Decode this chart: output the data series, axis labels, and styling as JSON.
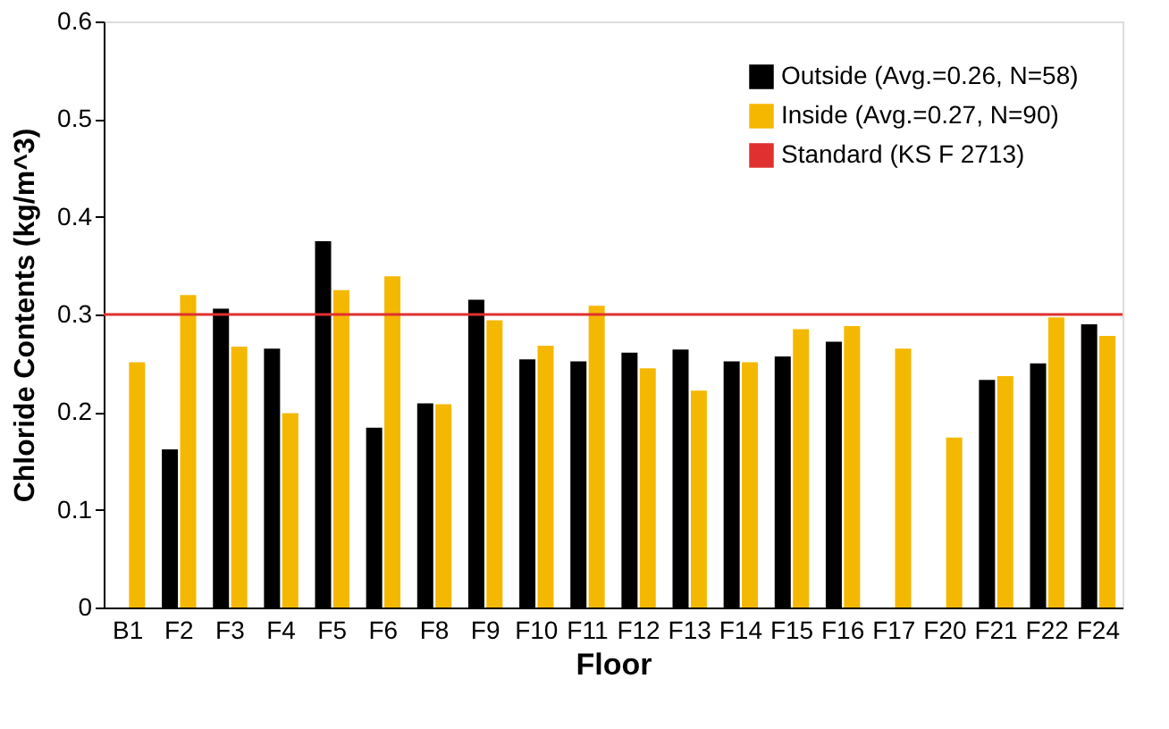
{
  "chart_data": {
    "type": "bar",
    "xlabel": "Floor",
    "ylabel": "Chloride Contents (kg/m^3)",
    "categories": [
      "B1",
      "F2",
      "F3",
      "F4",
      "F5",
      "F6",
      "F8",
      "F9",
      "F10",
      "F11",
      "F12",
      "F13",
      "F14",
      "F15",
      "F16",
      "F17",
      "F20",
      "F21",
      "F22",
      "F24"
    ],
    "series": [
      {
        "name": "Outside (Avg.=0.26, N=58)",
        "color": "#000000",
        "values": [
          null,
          0.162,
          0.306,
          0.265,
          0.375,
          0.184,
          0.209,
          0.315,
          0.254,
          0.252,
          0.261,
          0.264,
          0.252,
          0.257,
          0.272,
          null,
          null,
          0.233,
          0.25,
          0.29
        ]
      },
      {
        "name": "Inside (Avg.=0.27, N=90)",
        "color": "#f5b800",
        "values": [
          0.251,
          0.32,
          0.267,
          0.199,
          0.325,
          0.339,
          0.208,
          0.294,
          0.268,
          0.309,
          0.245,
          0.222,
          0.251,
          0.285,
          0.288,
          0.265,
          0.174,
          0.237,
          0.297,
          0.278
        ]
      }
    ],
    "ref_lines": [
      {
        "axis": "y",
        "value": 0.3,
        "label": "Standard (KS F 2713)",
        "color": "#e03030"
      }
    ],
    "ylim": [
      0,
      0.6
    ],
    "yticks": [
      0,
      0.1,
      0.2,
      0.3,
      0.4,
      0.5,
      0.6
    ],
    "grid": false,
    "legend": "top right"
  }
}
